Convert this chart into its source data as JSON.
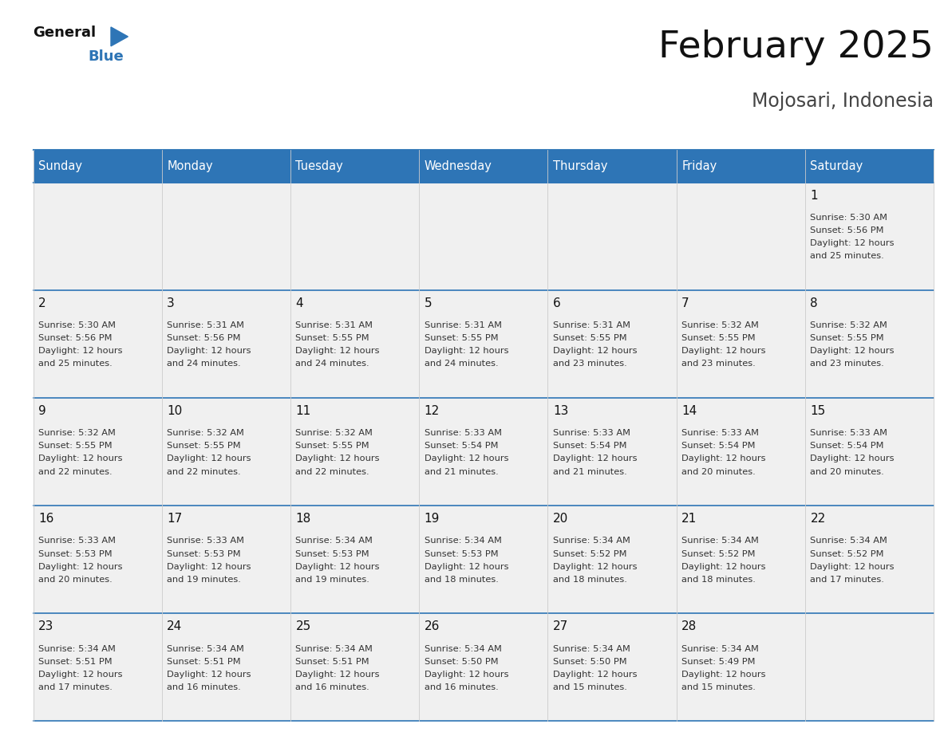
{
  "title": "February 2025",
  "subtitle": "Mojosari, Indonesia",
  "header_bg": "#2E75B6",
  "header_text_color": "#FFFFFF",
  "days_of_week": [
    "Sunday",
    "Monday",
    "Tuesday",
    "Wednesday",
    "Thursday",
    "Friday",
    "Saturday"
  ],
  "cell_bg": "#F0F0F0",
  "border_color": "#2E75B6",
  "text_color": "#333333",
  "day_num_color": "#111111",
  "calendar": [
    [
      null,
      null,
      null,
      null,
      null,
      null,
      {
        "day": 1,
        "sunrise": "5:30 AM",
        "sunset": "5:56 PM",
        "daylight_extra": "25 minutes."
      }
    ],
    [
      {
        "day": 2,
        "sunrise": "5:30 AM",
        "sunset": "5:56 PM",
        "daylight_extra": "25 minutes."
      },
      {
        "day": 3,
        "sunrise": "5:31 AM",
        "sunset": "5:56 PM",
        "daylight_extra": "24 minutes."
      },
      {
        "day": 4,
        "sunrise": "5:31 AM",
        "sunset": "5:55 PM",
        "daylight_extra": "24 minutes."
      },
      {
        "day": 5,
        "sunrise": "5:31 AM",
        "sunset": "5:55 PM",
        "daylight_extra": "24 minutes."
      },
      {
        "day": 6,
        "sunrise": "5:31 AM",
        "sunset": "5:55 PM",
        "daylight_extra": "23 minutes."
      },
      {
        "day": 7,
        "sunrise": "5:32 AM",
        "sunset": "5:55 PM",
        "daylight_extra": "23 minutes."
      },
      {
        "day": 8,
        "sunrise": "5:32 AM",
        "sunset": "5:55 PM",
        "daylight_extra": "23 minutes."
      }
    ],
    [
      {
        "day": 9,
        "sunrise": "5:32 AM",
        "sunset": "5:55 PM",
        "daylight_extra": "22 minutes."
      },
      {
        "day": 10,
        "sunrise": "5:32 AM",
        "sunset": "5:55 PM",
        "daylight_extra": "22 minutes."
      },
      {
        "day": 11,
        "sunrise": "5:32 AM",
        "sunset": "5:55 PM",
        "daylight_extra": "22 minutes."
      },
      {
        "day": 12,
        "sunrise": "5:33 AM",
        "sunset": "5:54 PM",
        "daylight_extra": "21 minutes."
      },
      {
        "day": 13,
        "sunrise": "5:33 AM",
        "sunset": "5:54 PM",
        "daylight_extra": "21 minutes."
      },
      {
        "day": 14,
        "sunrise": "5:33 AM",
        "sunset": "5:54 PM",
        "daylight_extra": "20 minutes."
      },
      {
        "day": 15,
        "sunrise": "5:33 AM",
        "sunset": "5:54 PM",
        "daylight_extra": "20 minutes."
      }
    ],
    [
      {
        "day": 16,
        "sunrise": "5:33 AM",
        "sunset": "5:53 PM",
        "daylight_extra": "20 minutes."
      },
      {
        "day": 17,
        "sunrise": "5:33 AM",
        "sunset": "5:53 PM",
        "daylight_extra": "19 minutes."
      },
      {
        "day": 18,
        "sunrise": "5:34 AM",
        "sunset": "5:53 PM",
        "daylight_extra": "19 minutes."
      },
      {
        "day": 19,
        "sunrise": "5:34 AM",
        "sunset": "5:53 PM",
        "daylight_extra": "18 minutes."
      },
      {
        "day": 20,
        "sunrise": "5:34 AM",
        "sunset": "5:52 PM",
        "daylight_extra": "18 minutes."
      },
      {
        "day": 21,
        "sunrise": "5:34 AM",
        "sunset": "5:52 PM",
        "daylight_extra": "18 minutes."
      },
      {
        "day": 22,
        "sunrise": "5:34 AM",
        "sunset": "5:52 PM",
        "daylight_extra": "17 minutes."
      }
    ],
    [
      {
        "day": 23,
        "sunrise": "5:34 AM",
        "sunset": "5:51 PM",
        "daylight_extra": "17 minutes."
      },
      {
        "day": 24,
        "sunrise": "5:34 AM",
        "sunset": "5:51 PM",
        "daylight_extra": "16 minutes."
      },
      {
        "day": 25,
        "sunrise": "5:34 AM",
        "sunset": "5:51 PM",
        "daylight_extra": "16 minutes."
      },
      {
        "day": 26,
        "sunrise": "5:34 AM",
        "sunset": "5:50 PM",
        "daylight_extra": "16 minutes."
      },
      {
        "day": 27,
        "sunrise": "5:34 AM",
        "sunset": "5:50 PM",
        "daylight_extra": "15 minutes."
      },
      {
        "day": 28,
        "sunrise": "5:34 AM",
        "sunset": "5:49 PM",
        "daylight_extra": "15 minutes."
      },
      null
    ]
  ]
}
